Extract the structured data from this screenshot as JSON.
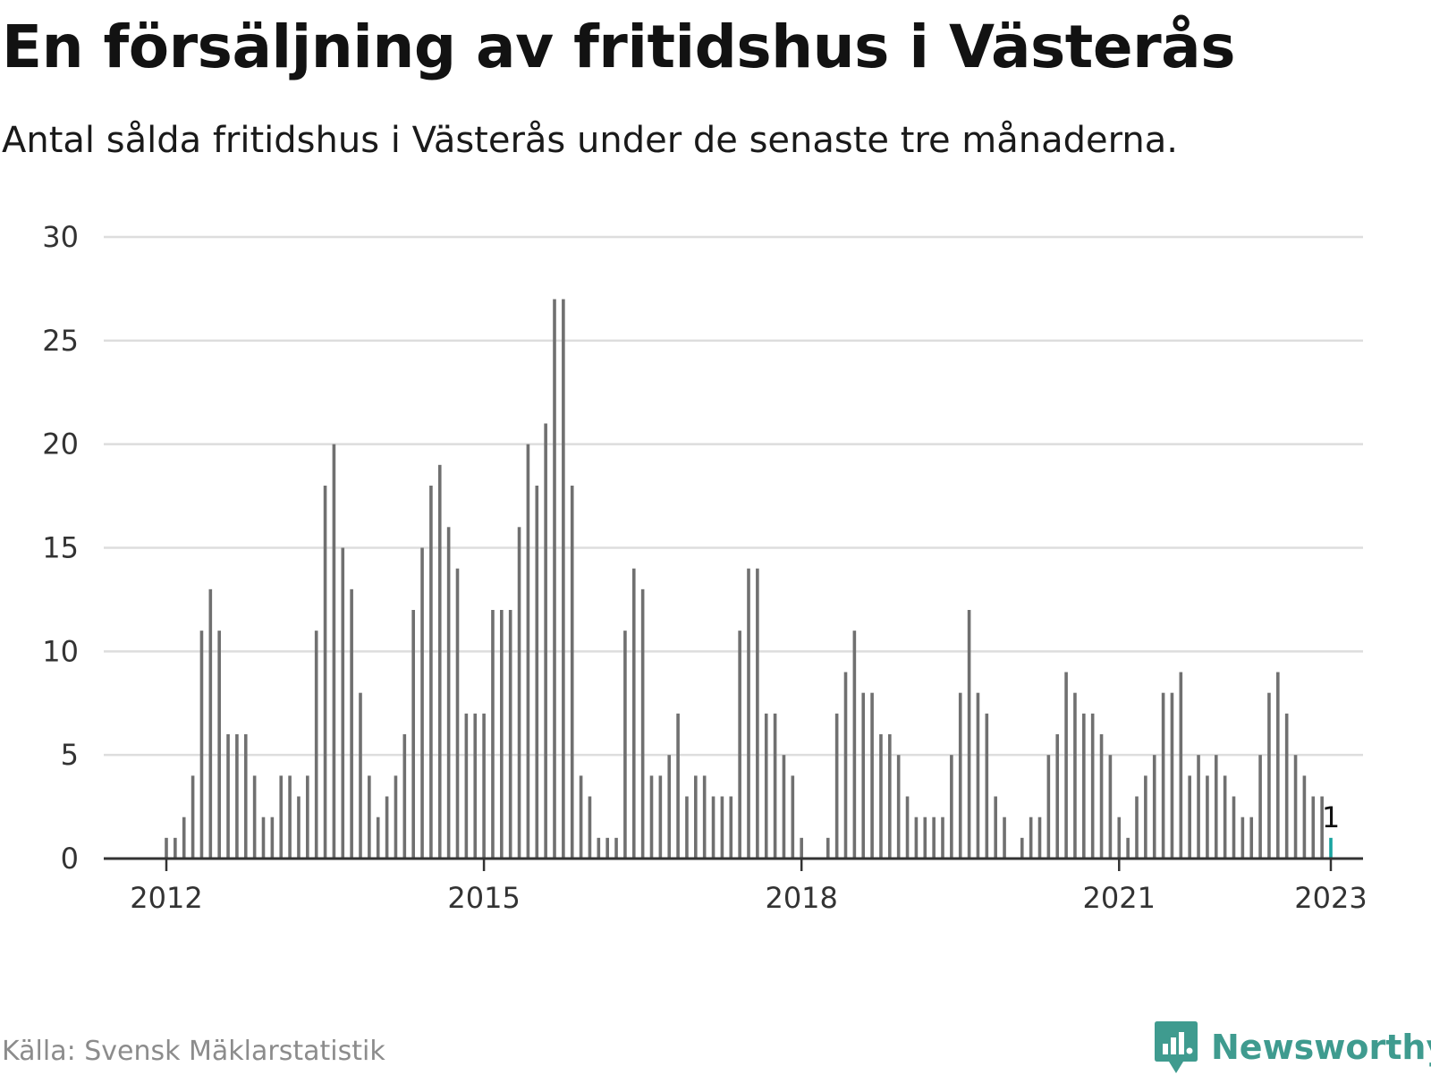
{
  "header": {
    "title": "En försäljning av fritidshus i Västerås",
    "subtitle": "Antal sålda fritidshus i Västerås under de senaste tre månaderna."
  },
  "footer": {
    "source": "Källa: Svensk Mäklarstatistik",
    "brand": "Newsworthy"
  },
  "colors": {
    "bar": "#707070",
    "highlight": "#19a3a0",
    "grid": "#dddddd",
    "axis": "#333333",
    "brand": "#3f9b8f"
  },
  "chart_data": {
    "type": "bar",
    "title": "En försäljning av fritidshus i Västerås",
    "subtitle": "Antal sålda fritidshus i Västerås under de senaste tre månaderna.",
    "xlabel": "",
    "ylabel": "",
    "ylim": [
      0,
      30
    ],
    "yticks": [
      0,
      5,
      10,
      15,
      20,
      25,
      30
    ],
    "xticks": [
      {
        "label": "2012",
        "index": 0
      },
      {
        "label": "2015",
        "index": 36
      },
      {
        "label": "2018",
        "index": 72
      },
      {
        "label": "2021",
        "index": 108
      },
      {
        "label": "2023",
        "index": 132
      }
    ],
    "grid": true,
    "x_start": "2012-01",
    "x_end": "2023-01",
    "values": [
      1,
      1,
      2,
      4,
      11,
      13,
      11,
      6,
      6,
      6,
      4,
      2,
      2,
      4,
      4,
      3,
      4,
      11,
      18,
      20,
      15,
      13,
      8,
      4,
      2,
      3,
      4,
      6,
      12,
      15,
      18,
      19,
      16,
      14,
      7,
      7,
      7,
      12,
      12,
      12,
      16,
      20,
      18,
      21,
      27,
      27,
      18,
      4,
      3,
      1,
      1,
      1,
      11,
      14,
      13,
      4,
      4,
      5,
      7,
      3,
      4,
      4,
      3,
      3,
      3,
      11,
      14,
      14,
      7,
      7,
      5,
      4,
      1,
      0,
      0,
      1,
      7,
      9,
      11,
      8,
      8,
      6,
      6,
      5,
      3,
      2,
      2,
      2,
      2,
      5,
      8,
      12,
      8,
      7,
      3,
      2,
      0,
      1,
      2,
      2,
      5,
      6,
      9,
      8,
      7,
      7,
      6,
      5,
      2,
      1,
      3,
      4,
      5,
      8,
      8,
      9,
      4,
      5,
      4,
      5,
      4,
      3,
      2,
      2,
      5,
      8,
      9,
      7,
      5,
      4,
      3,
      3,
      1
    ],
    "highlight_last": true,
    "annotation": {
      "label": "1",
      "index": 132
    }
  }
}
